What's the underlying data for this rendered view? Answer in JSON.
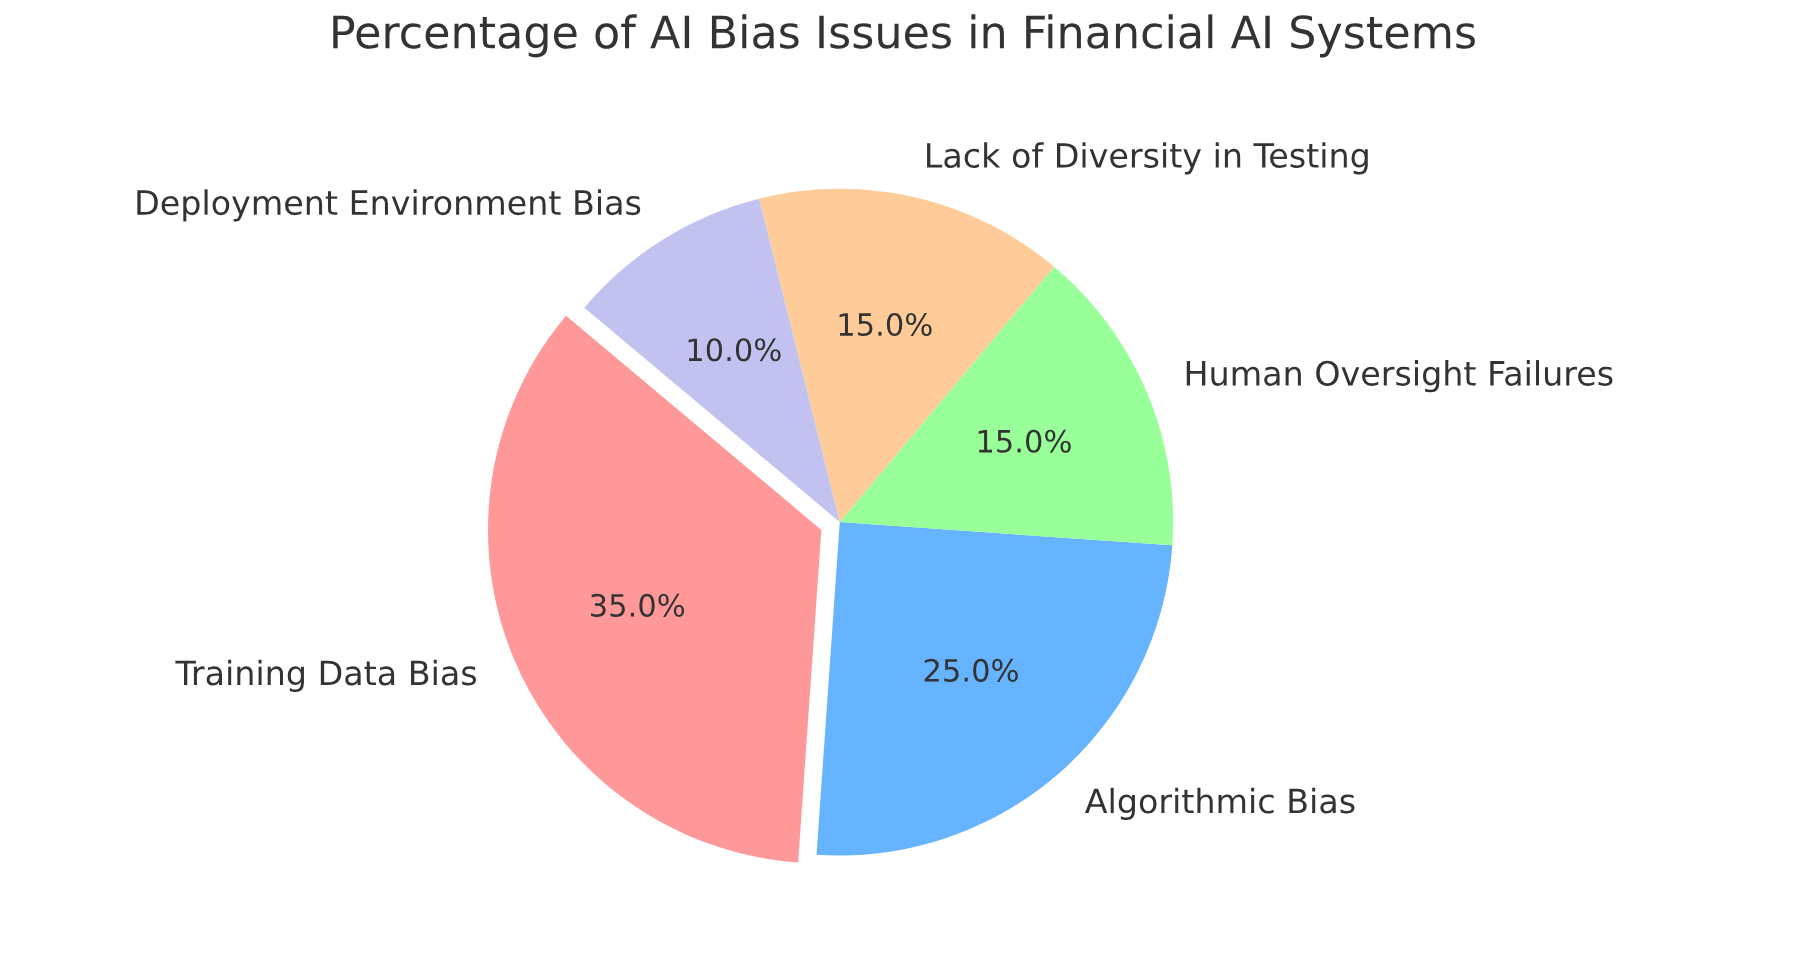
{
  "chart_data": {
    "type": "pie",
    "title": "Percentage of AI Bias Issues in Financial AI Systems",
    "categories": [
      "Training Data Bias",
      "Algorithmic Bias",
      "Human Oversight Failures",
      "Lack of Diversity in Testing",
      "Deployment Environment Bias"
    ],
    "values": [
      35,
      25,
      15,
      15,
      10
    ],
    "colors": [
      "#ff9999",
      "#66b3ff",
      "#99ff99",
      "#ffcc99",
      "#c2c2f0"
    ],
    "value_labels": [
      "35.0%",
      "25.0%",
      "15.0%",
      "15.0%",
      "10.0%"
    ]
  }
}
